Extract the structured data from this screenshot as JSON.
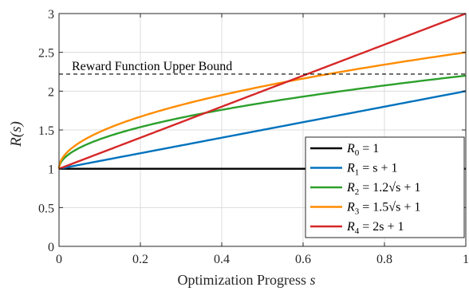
{
  "chart_data": {
    "type": "line",
    "xlabel": "Optimization Progress",
    "xlabel_var": "s",
    "ylabel": "R(s)",
    "xlim": [
      0,
      1
    ],
    "ylim": [
      0,
      3
    ],
    "xticks": [
      "0",
      "0.2",
      "0.4",
      "0.6",
      "0.8",
      "1"
    ],
    "yticks": [
      "0",
      "0.5",
      "1",
      "1.5",
      "2",
      "2.5",
      "3"
    ],
    "grid": true,
    "legend_position": "lower-right",
    "series": [
      {
        "name": "R0 = 1",
        "label_main": "R",
        "label_sub": "0",
        "label_rest": " = 1",
        "formula": "1",
        "color": "#000000",
        "x": [
          0,
          1
        ],
        "y": [
          1,
          1
        ]
      },
      {
        "name": "R1 = s + 1",
        "label_main": "R",
        "label_sub": "1",
        "label_rest": " = s + 1",
        "formula": "s+1",
        "color": "#0072BD",
        "x": [
          0,
          0.25,
          0.5,
          0.75,
          1
        ],
        "y": [
          1,
          1.25,
          1.5,
          1.75,
          2
        ]
      },
      {
        "name": "R2 = 1.2√s + 1",
        "label_main": "R",
        "label_sub": "2",
        "label_rest": " = 1.2√s + 1",
        "formula": "1.2*sqrt(s)+1",
        "color": "#2CA02C",
        "x": [
          0,
          0.01,
          0.05,
          0.1,
          0.2,
          0.4,
          0.6,
          0.8,
          1
        ],
        "y": [
          1,
          1.12,
          1.27,
          1.38,
          1.54,
          1.76,
          1.93,
          2.07,
          2.2
        ]
      },
      {
        "name": "R3 = 1.5√s + 1",
        "label_main": "R",
        "label_sub": "3",
        "label_rest": " = 1.5√s + 1",
        "formula": "1.5*sqrt(s)+1",
        "color": "#FF8C00",
        "x": [
          0,
          0.01,
          0.05,
          0.1,
          0.2,
          0.4,
          0.6,
          0.8,
          1
        ],
        "y": [
          1,
          1.15,
          1.34,
          1.47,
          1.67,
          1.95,
          2.16,
          2.34,
          2.5
        ]
      },
      {
        "name": "R4 = 2s + 1",
        "label_main": "R",
        "label_sub": "4",
        "label_rest": " = 2s + 1",
        "formula": "2*s+1",
        "color": "#D62728",
        "x": [
          0,
          0.25,
          0.5,
          0.75,
          1
        ],
        "y": [
          1,
          1.5,
          2,
          2.5,
          3
        ]
      }
    ],
    "reference_line": {
      "label": "Reward Function Upper Bound",
      "y": 2.22,
      "style": "dashed",
      "color": "#000000"
    }
  }
}
